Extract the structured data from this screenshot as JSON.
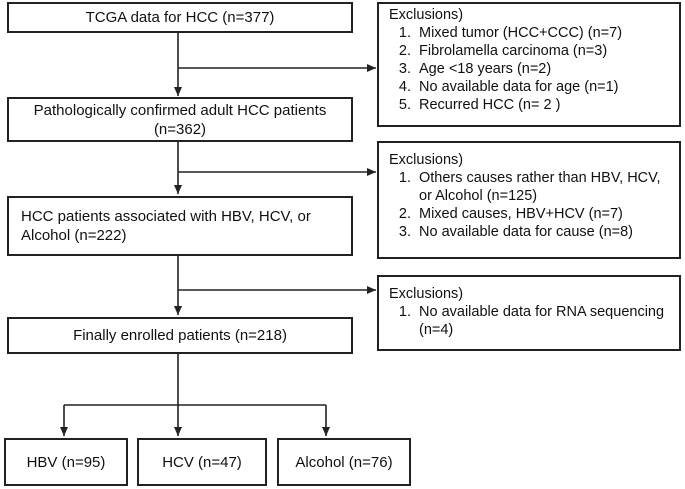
{
  "main": {
    "box1": "TCGA data for HCC (n=377)",
    "box2_line1": "Pathologically confirmed adult HCC patients",
    "box2_line2": "(n=362)",
    "box3_line1": "HCC patients associated with HBV, HCV, or",
    "box3_line2": "Alcohol (n=222)",
    "box4": "Finally enrolled patients (n=218)"
  },
  "groups": {
    "hbv": "HBV (n=95)",
    "hcv": "HCV (n=47)",
    "alcohol": "Alcohol (n=76)"
  },
  "exclusions1": {
    "title": "Exclusions)",
    "items": [
      "Mixed tumor (HCC+CCC) (n=7)",
      "Fibrolamella carcinoma (n=3)",
      "Age <18 years (n=2)",
      "No available data for age (n=1)",
      "Recurred HCC (n= 2 )"
    ]
  },
  "exclusions2": {
    "title": "Exclusions)",
    "items": [
      "Others causes rather than HBV, HCV, or Alcohol (n=125)",
      "Mixed causes, HBV+HCV (n=7)",
      "No available data for cause (n=8)"
    ]
  },
  "exclusions3": {
    "title": "Exclusions)",
    "items": [
      "No available data for RNA sequencing (n=4)"
    ]
  }
}
